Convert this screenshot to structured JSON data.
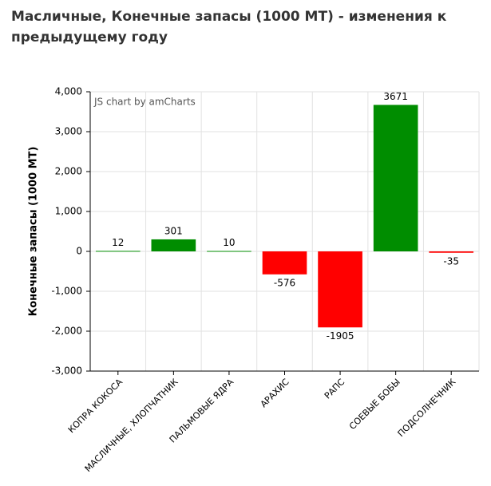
{
  "chart_data": {
    "type": "bar",
    "title": "Масличные, Конечные запасы (1000 МТ) - изменения к предыдущему году",
    "y_label": "Конечные запасы (1000 МТ)",
    "watermark": "JS chart by amCharts",
    "categories": [
      "КОПРА КОКОСА",
      "МАСЛИЧНЫЕ, ХЛОПЧАТНИК",
      "ПАЛЬМОВЫЕ ЯДРА",
      "АРАХИС",
      "РАПС",
      "СОЕВЫЕ БОБЫ",
      "ПОДСОЛНЕЧНИК"
    ],
    "values": [
      12,
      301,
      10,
      -576,
      -1905,
      3671,
      -35
    ],
    "positive_color": "#008d00",
    "negative_color": "#ff0000",
    "ylim": [
      -3000,
      4000
    ],
    "yticks": [
      {
        "value": -3000,
        "label": "-3,000"
      },
      {
        "value": -2000,
        "label": "-2,000"
      },
      {
        "value": -1000,
        "label": "-1,000"
      },
      0,
      {
        "value": 1000,
        "label": "1,000"
      },
      {
        "value": 2000,
        "label": "2,000"
      },
      {
        "value": 3000,
        "label": "3,000"
      },
      {
        "value": 4000,
        "label": "4,000"
      }
    ],
    "grid": true
  }
}
